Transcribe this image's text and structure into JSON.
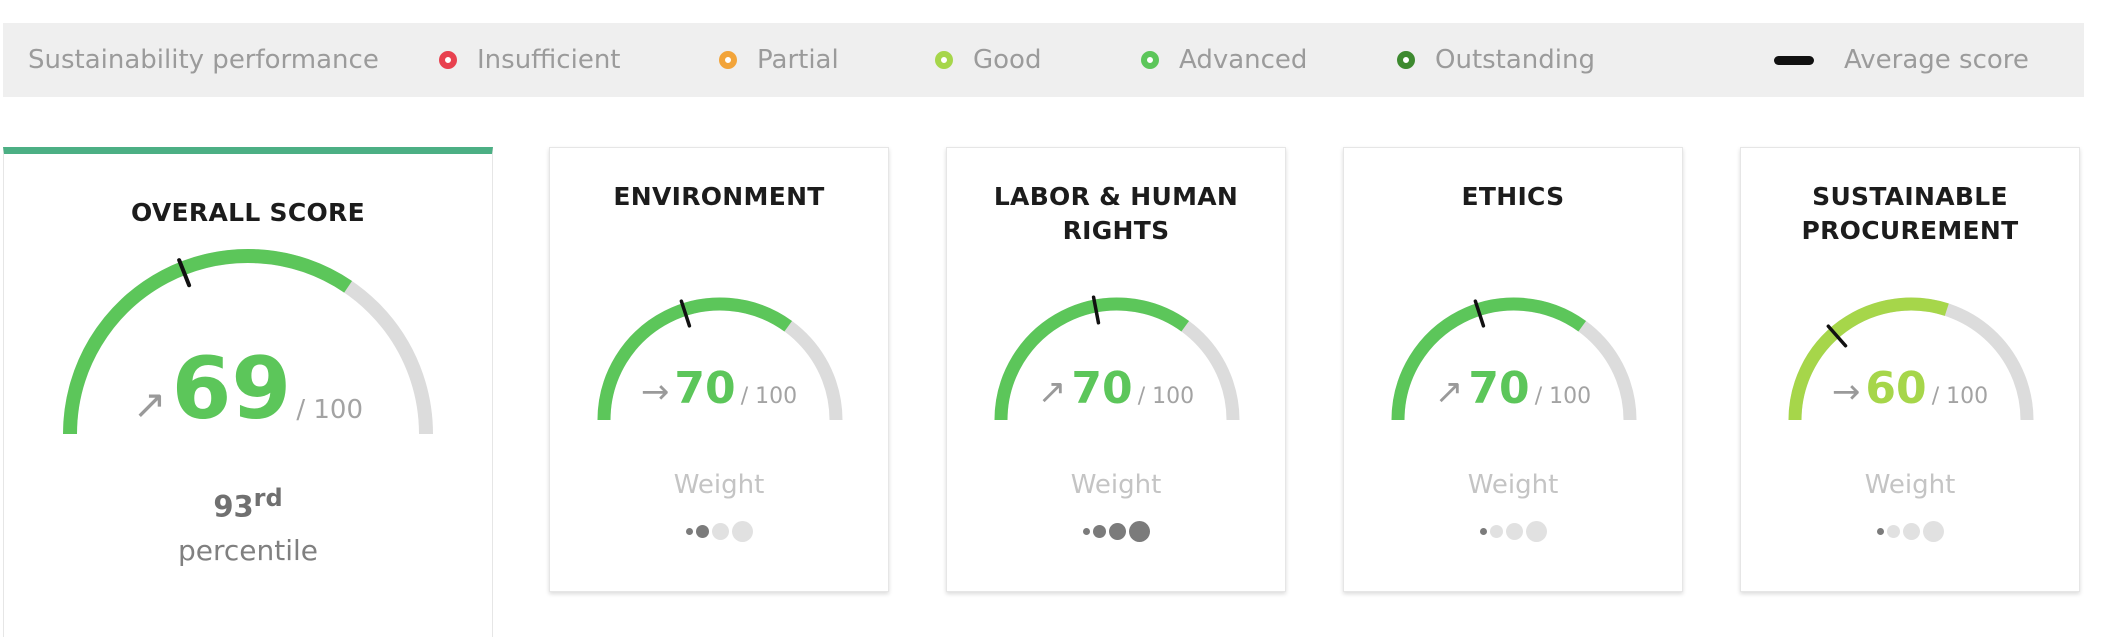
{
  "colors": {
    "insufficient": "#e8414f",
    "partial": "#f2a43a",
    "good": "#a6d64a",
    "advanced": "#5cc65a",
    "outstanding": "#3d8a2f",
    "track": "#dcdcdc",
    "average_marker": "#111111"
  },
  "legend": {
    "title": "Sustainability performance",
    "items": [
      {
        "label": "Insufficient",
        "color": "#e8414f"
      },
      {
        "label": "Partial",
        "color": "#f2a43a"
      },
      {
        "label": "Good",
        "color": "#a6d64a"
      },
      {
        "label": "Advanced",
        "color": "#5cc65a"
      },
      {
        "label": "Outstanding",
        "color": "#3d8a2f"
      }
    ],
    "average_label": "Average score"
  },
  "overall": {
    "title": "OVERALL SCORE",
    "score": "69",
    "score_value": 69,
    "max": "/ 100",
    "trend": "up",
    "trend_icon": "↗",
    "average_value": 38,
    "color": "#5cc65a",
    "percentile_rank": "93",
    "percentile_suffix": "rd",
    "percentile_label": "percentile"
  },
  "themes": [
    {
      "title_lines": [
        "ENVIRONMENT"
      ],
      "score": "70",
      "score_value": 70,
      "max": "/ 100",
      "trend": "flat",
      "trend_icon": "→",
      "average_value": 40,
      "color": "#5cc65a",
      "weight_label": "Weight",
      "weight_level": 2
    },
    {
      "title_lines": [
        "LABOR & HUMAN",
        "RIGHTS"
      ],
      "score": "70",
      "score_value": 70,
      "max": "/ 100",
      "trend": "up",
      "trend_icon": "↗",
      "average_value": 44,
      "color": "#5cc65a",
      "weight_label": "Weight",
      "weight_level": 4
    },
    {
      "title_lines": [
        "ETHICS"
      ],
      "score": "70",
      "score_value": 70,
      "max": "/ 100",
      "trend": "up",
      "trend_icon": "↗",
      "average_value": 40,
      "color": "#5cc65a",
      "weight_label": "Weight",
      "weight_level": 1
    },
    {
      "title_lines": [
        "SUSTAINABLE",
        "PROCUREMENT"
      ],
      "score": "60",
      "score_value": 60,
      "max": "/ 100",
      "trend": "flat",
      "trend_icon": "→",
      "average_value": 27,
      "color": "#a6d64a",
      "weight_label": "Weight",
      "weight_level": 1
    }
  ]
}
